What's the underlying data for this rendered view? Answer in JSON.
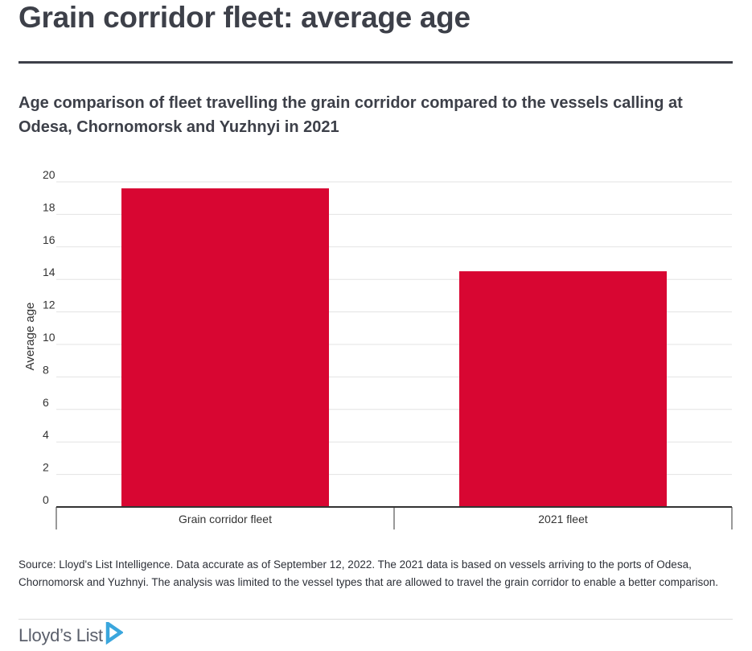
{
  "header": {
    "title": "Grain corridor fleet: average age",
    "subtitle": "Age comparison of fleet travelling the grain corridor compared to the vessels calling at Odesa, Chornomorsk and Yuzhnyi in 2021"
  },
  "chart_data": {
    "type": "bar",
    "categories": [
      "Grain corridor fleet",
      "2021 fleet"
    ],
    "values": [
      19.6,
      14.5
    ],
    "title": "",
    "xlabel": "",
    "ylabel": "Average age",
    "ylim": [
      0,
      20
    ],
    "yticks": [
      "0",
      "2",
      "4",
      "6",
      "8",
      "10",
      "12",
      "14",
      "16",
      "18",
      "20"
    ],
    "grid": true,
    "bar_color": "#d80632"
  },
  "footer": {
    "source": "Source: Lloyd's List Intelligence. Data accurate as of September 12, 2022. The 2021 data is based on vessels arriving to the ports of Odesa, Chornomorsk and Yuzhnyi. The analysis was limited to the vessel types that are allowed to travel the grain corridor to enable a better comparison.",
    "logo_text": "Lloyd’s List",
    "logo_icon": "play-arrow-icon",
    "logo_color": "#3aa6dd"
  }
}
